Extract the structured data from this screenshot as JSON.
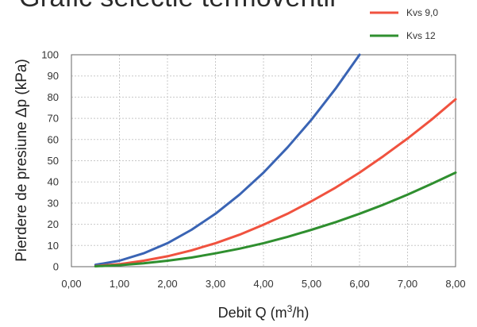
{
  "page": {
    "title": "Grafic selectie termoventil"
  },
  "chart_data": {
    "type": "line",
    "title": "",
    "xlabel": "Debit Q (m³/h)",
    "ylabel": "Pierdere de presiune Δp (kPa)",
    "xlim": [
      0,
      8
    ],
    "ylim": [
      0,
      100
    ],
    "x_ticks": [
      "0,00",
      "1,00",
      "2,00",
      "3,00",
      "4,00",
      "5,00",
      "6,00",
      "7,00",
      "8,00"
    ],
    "y_ticks": [
      "0",
      "10",
      "20",
      "30",
      "40",
      "50",
      "60",
      "70",
      "80",
      "90",
      "100"
    ],
    "grid": true,
    "legend_position": "top-right",
    "series": [
      {
        "name": "",
        "color": "#3a64b4",
        "x": [
          0.5,
          1.0,
          1.5,
          2.0,
          2.5,
          3.0,
          3.5,
          4.0,
          4.5,
          5.0,
          5.5,
          6.0
        ],
        "y": [
          0.9,
          2.8,
          6.3,
          11.1,
          17.4,
          25.0,
          34.0,
          44.4,
          56.3,
          69.4,
          84.0,
          100.0
        ]
      },
      {
        "name": "Kvs 9,0",
        "color": "#f0523f",
        "x": [
          0.5,
          1.0,
          1.5,
          2.0,
          2.5,
          3.0,
          3.5,
          4.0,
          4.5,
          5.0,
          5.5,
          6.0,
          6.5,
          7.0,
          7.5,
          8.0
        ],
        "y": [
          0.3,
          1.2,
          2.8,
          4.9,
          7.7,
          11.1,
          15.1,
          19.8,
          25.0,
          30.9,
          37.3,
          44.4,
          52.2,
          60.5,
          69.4,
          79.0
        ]
      },
      {
        "name": "Kvs 12",
        "color": "#2f8f2f",
        "x": [
          0.5,
          1.0,
          1.5,
          2.0,
          2.5,
          3.0,
          3.5,
          4.0,
          4.5,
          5.0,
          5.5,
          6.0,
          6.5,
          7.0,
          7.5,
          8.0
        ],
        "y": [
          0.2,
          0.7,
          1.6,
          2.8,
          4.3,
          6.3,
          8.5,
          11.1,
          14.1,
          17.4,
          21.0,
          25.0,
          29.3,
          34.0,
          39.1,
          44.4
        ]
      }
    ]
  }
}
